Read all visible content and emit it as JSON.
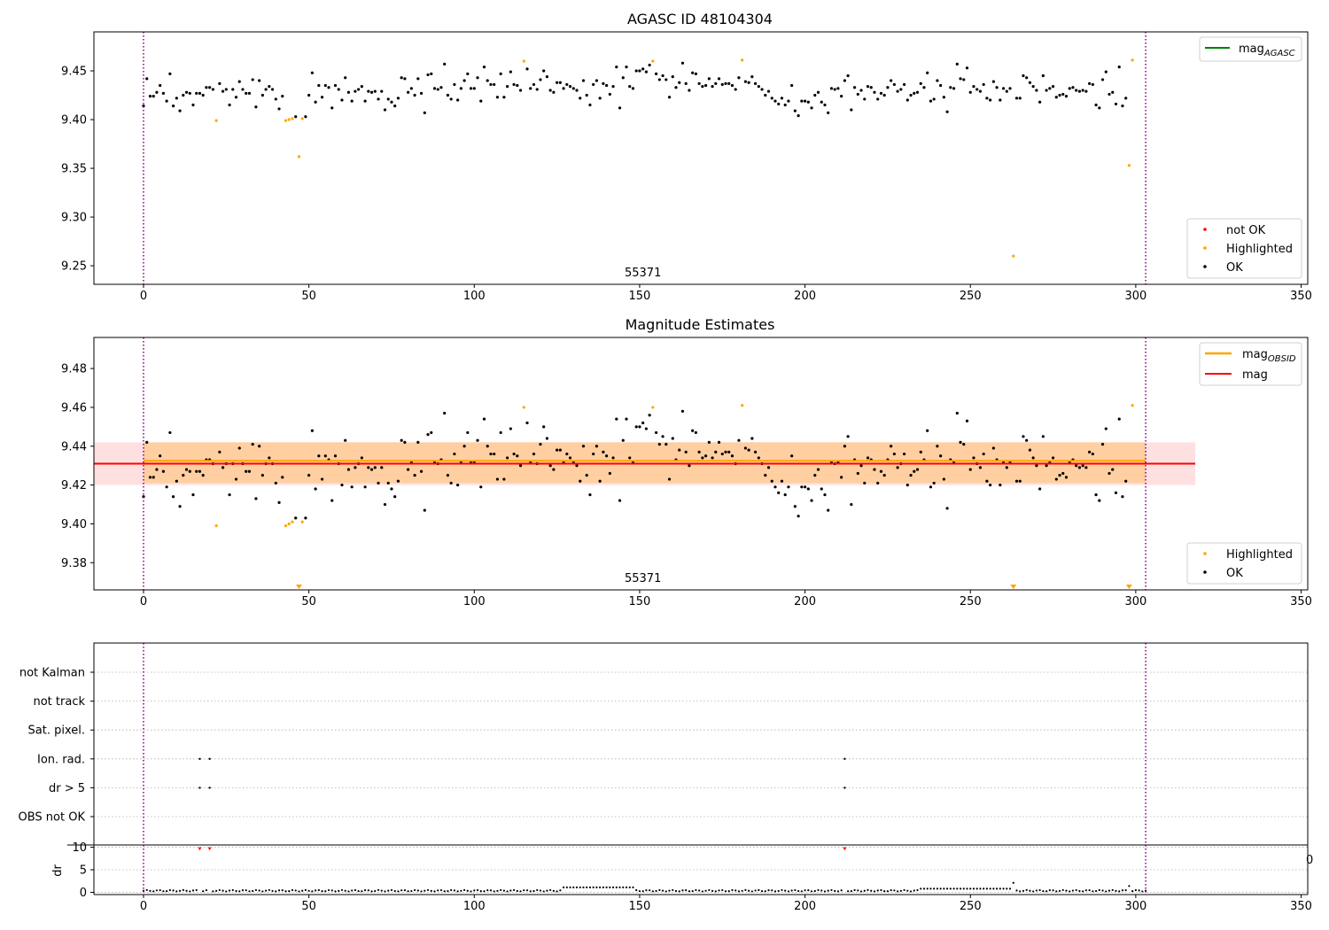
{
  "chart_data": [
    {
      "type": "scatter",
      "title": "AGASC ID 48104304",
      "xlim": [
        -15,
        352
      ],
      "ylim": [
        9.231,
        9.49
      ],
      "xticks": [
        0,
        50,
        100,
        150,
        200,
        250,
        300,
        350
      ],
      "yticks": [
        9.25,
        9.3,
        9.35,
        9.4,
        9.45
      ],
      "ytick_labels": [
        "9.25",
        "9.30",
        "9.35",
        "9.40",
        "9.45"
      ],
      "vlines": [
        0,
        303
      ],
      "annotation": {
        "x": 151,
        "text": "55371"
      },
      "legend_top": {
        "placement": "top-right",
        "entries": [
          {
            "label": "mag",
            "sub": "AGASC",
            "color": "#008000"
          }
        ]
      },
      "legend_bottom": {
        "placement": "bottom-right",
        "entries": [
          {
            "label": "not OK",
            "color": "#ff0000"
          },
          {
            "label": "Highlighted",
            "color": "#ffa500"
          },
          {
            "label": "OK",
            "color": "#000000"
          }
        ]
      },
      "series": [
        {
          "name": "Highlighted",
          "color": "#ffa500",
          "x": [
            22,
            43,
            44,
            45,
            47,
            48,
            115,
            154,
            181,
            263,
            298,
            299
          ],
          "y": [
            9.399,
            9.399,
            9.4,
            9.401,
            9.362,
            9.401,
            9.46,
            9.46,
            9.461,
            9.26,
            9.353,
            9.461
          ]
        }
      ],
      "ok_series": {
        "name": "OK",
        "color": "#000000",
        "x_start": 0,
        "x_end": 303,
        "y": [
          9.414,
          9.442,
          9.424,
          9.424,
          9.428,
          9.435,
          9.427,
          9.419,
          9.447,
          9.414,
          9.422,
          9.409,
          9.425,
          9.428,
          9.427,
          9.415,
          9.427,
          9.427,
          9.425,
          9.433,
          9.433,
          9.431,
          9.439,
          9.437,
          9.429,
          9.431,
          9.415,
          9.431,
          9.423,
          9.439,
          9.431,
          9.427,
          9.427,
          9.441,
          9.413,
          9.44,
          9.425,
          9.431,
          9.434,
          9.431,
          9.421,
          9.411,
          9.424,
          9.419,
          9.425,
          9.424,
          9.403,
          9.402,
          9.42,
          9.403,
          9.425,
          9.448,
          9.418,
          9.435,
          9.423,
          9.435,
          9.433,
          9.412,
          9.435,
          9.431,
          9.42,
          9.443,
          9.428,
          9.419,
          9.429,
          9.431,
          9.434,
          9.419,
          9.429,
          9.428,
          9.429,
          9.421,
          9.429,
          9.41,
          9.421,
          9.418,
          9.414,
          9.422,
          9.443,
          9.442,
          9.428,
          9.432,
          9.425,
          9.442,
          9.427,
          9.407,
          9.446,
          9.447,
          9.432,
          9.431,
          9.433,
          9.457,
          9.425,
          9.421,
          9.436,
          9.42,
          9.432,
          9.44,
          9.447,
          9.432,
          9.432,
          9.443,
          9.419,
          9.454,
          9.44,
          9.436,
          9.436,
          9.423,
          9.447,
          9.423,
          9.434,
          9.449,
          9.436,
          9.435,
          9.43,
          9.446,
          9.452,
          9.432,
          9.436,
          9.431,
          9.441,
          9.45,
          9.444,
          9.43,
          9.428,
          9.438,
          9.438,
          9.432,
          9.436,
          9.434,
          9.432,
          9.43,
          9.422,
          9.44,
          9.425,
          9.415,
          9.436,
          9.44,
          9.422,
          9.437,
          9.435,
          9.426,
          9.434,
          9.454,
          9.412,
          9.443,
          9.454,
          9.434,
          9.432,
          9.45,
          9.45,
          9.452,
          9.449,
          9.456,
          9.452,
          9.447,
          9.441,
          9.445,
          9.441,
          9.423,
          9.444,
          9.433,
          9.438,
          9.458,
          9.437,
          9.43,
          9.448,
          9.447,
          9.437,
          9.434,
          9.435,
          9.442,
          9.434,
          9.437,
          9.442,
          9.436,
          9.437,
          9.437,
          9.435,
          9.431,
          9.443,
          9.433,
          9.439,
          9.438,
          9.444,
          9.437,
          9.434,
          9.431,
          9.425,
          9.429,
          9.422,
          9.419,
          9.416,
          9.422,
          9.415,
          9.419,
          9.435,
          9.409,
          9.404,
          9.419,
          9.419,
          9.418,
          9.412,
          9.425,
          9.428,
          9.418,
          9.415,
          9.407,
          9.432,
          9.431,
          9.432,
          9.424,
          9.44,
          9.445,
          9.41,
          9.433,
          9.426,
          9.43,
          9.421,
          9.434,
          9.433,
          9.428,
          9.421,
          9.427,
          9.425,
          9.433,
          9.44,
          9.436,
          9.429,
          9.431,
          9.436,
          9.42,
          9.425,
          9.427,
          9.428,
          9.437,
          9.433,
          9.448,
          9.419,
          9.421,
          9.44,
          9.435,
          9.423,
          9.408,
          9.433,
          9.432,
          9.457,
          9.442,
          9.441,
          9.453,
          9.428,
          9.434,
          9.431,
          9.429,
          9.436,
          9.422,
          9.42,
          9.439,
          9.433,
          9.42,
          9.432,
          9.429,
          9.432,
          9.44,
          9.422,
          9.422,
          9.445,
          9.443,
          9.438,
          9.434,
          9.43,
          9.418,
          9.445,
          9.43,
          9.432,
          9.434,
          9.423,
          9.425,
          9.426,
          9.424,
          9.432,
          9.433,
          9.43,
          9.429,
          9.43,
          9.429,
          9.437,
          9.436,
          9.415,
          9.412,
          9.441,
          9.449,
          9.426,
          9.428,
          9.416,
          9.454,
          9.414,
          9.422,
          9.432,
          9.417
        ]
      }
    },
    {
      "type": "scatter",
      "title": "Magnitude Estimates",
      "xlim": [
        -15,
        352
      ],
      "ylim": [
        9.366,
        9.496
      ],
      "xticks": [
        0,
        50,
        100,
        150,
        200,
        250,
        300,
        350
      ],
      "yticks": [
        9.38,
        9.4,
        9.42,
        9.44,
        9.46,
        9.48
      ],
      "ytick_labels": [
        "9.38",
        "9.40",
        "9.42",
        "9.44",
        "9.46",
        "9.48"
      ],
      "vlines": [
        0,
        303
      ],
      "annotation": {
        "x": 151,
        "text": "55371"
      },
      "mag_line": {
        "label": "mag",
        "value": 9.431,
        "band": [
          9.42,
          9.442
        ],
        "x_range": [
          -15,
          318
        ],
        "color": "#ff0000"
      },
      "obsid_line": {
        "label": "mag",
        "sub": "OBSID",
        "value": 9.432,
        "band": [
          9.421,
          9.442
        ],
        "x_range": [
          0,
          303
        ],
        "color": "#ffa500"
      },
      "outlier_markers_x": [
        47,
        263,
        298
      ],
      "legend_top": {
        "placement": "top-right",
        "entries": [
          {
            "label": "mag",
            "sub": "OBSID",
            "color": "#ffa500"
          },
          {
            "label": "mag",
            "color": "#ff0000"
          }
        ]
      },
      "legend_bottom": {
        "placement": "bottom-right",
        "entries": [
          {
            "label": "Highlighted",
            "color": "#ffa500"
          },
          {
            "label": "OK",
            "color": "#000000"
          }
        ]
      }
    },
    {
      "type": "scatter",
      "title": "",
      "xlim": [
        -15,
        352
      ],
      "xticks": [
        0,
        50,
        100,
        150,
        200,
        250,
        300,
        350
      ],
      "vlines": [
        0,
        303
      ],
      "flag_rows": [
        "not Kalman",
        "not track",
        "Sat. pixel.",
        "Ion. rad.",
        "dr > 5",
        "OBS not OK"
      ],
      "flags": [
        {
          "row": "Ion. rad.",
          "x": [
            17,
            20,
            212
          ]
        },
        {
          "row": "dr > 5",
          "x": [
            17,
            20,
            212
          ]
        }
      ],
      "dr_panel": {
        "ylabel": "dr",
        "ylim": [
          -0.5,
          10.5
        ],
        "yticks": [
          0,
          5,
          10
        ],
        "ytick_labels": [
          "0",
          "5",
          "10"
        ],
        "clipped_text": "0",
        "red_points": {
          "x": [
            17,
            20,
            212
          ],
          "y": [
            9.7,
            9.7,
            9.7
          ]
        },
        "baseline": 0.35,
        "bumps": [
          {
            "from": 127,
            "to": 148,
            "value": 1.1
          },
          {
            "from": 235,
            "to": 262,
            "value": 0.8
          },
          {
            "from": 263,
            "to": 263,
            "value": 2.1
          },
          {
            "from": 298,
            "to": 298,
            "value": 1.4
          }
        ]
      }
    }
  ]
}
